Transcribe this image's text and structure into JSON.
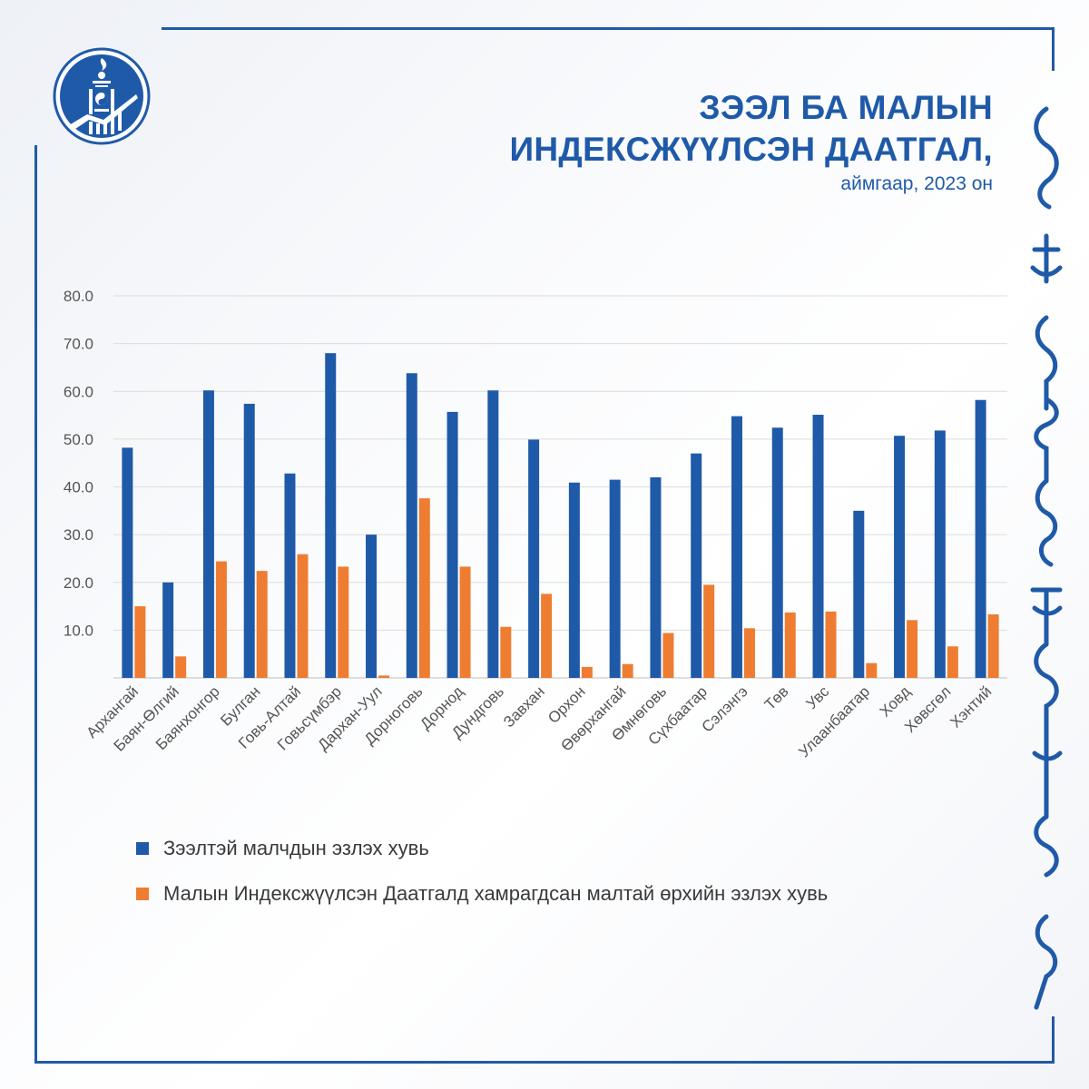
{
  "title": {
    "line1": "ЗЭЭЛ БА МАЛЫН",
    "line2": "ИНДЕКСЖҮҮЛСЭН ДААТГАЛ,",
    "subtitle": "аймгаар, 2023 он"
  },
  "colors": {
    "brand": "#1f5aa8",
    "series1": "#1f5aa8",
    "series2": "#ee7d31",
    "grid": "#dcdcdc",
    "axis_text": "#555555"
  },
  "icons": {
    "logo": "mongolia-soyombo-emblem-icon",
    "script": "mongolian-script-text-icon"
  },
  "chart_data": {
    "type": "bar",
    "categories": [
      "Архангай",
      "Баян-Өлгий",
      "Баянхонгор",
      "Булган",
      "Говь-Алтай",
      "Говьсүмбэр",
      "Дархан-Уул",
      "Дорноговь",
      "Дорнод",
      "Дундговь",
      "Завхан",
      "Орхон",
      "Өвөрхангай",
      "Өмнөговь",
      "Сүхбаатар",
      "Сэлэнгэ",
      "Төв",
      "Увс",
      "Улаанбаатар",
      "Ховд",
      "Хөвсгөл",
      "Хэнтий"
    ],
    "series": [
      {
        "name": "Зээлтэй малчдын эзлэх хувь",
        "values": [
          48.2,
          20.0,
          60.2,
          57.4,
          42.8,
          68.0,
          30.0,
          63.8,
          55.7,
          60.2,
          49.9,
          40.9,
          41.5,
          42.0,
          47.0,
          54.8,
          52.4,
          55.1,
          35.0,
          50.7,
          51.8,
          58.2
        ]
      },
      {
        "name": "Малын Индексжүүлсэн Даатгалд хамрагдсан малтай өрхийн эзлэх хувь",
        "values": [
          15.0,
          4.5,
          24.4,
          22.4,
          25.9,
          23.3,
          0.5,
          37.6,
          23.3,
          10.7,
          17.6,
          2.3,
          2.9,
          9.4,
          19.5,
          10.4,
          13.7,
          13.9,
          3.1,
          12.1,
          6.6,
          13.3
        ]
      }
    ],
    "y_ticks": [
      "10.0",
      "20.0",
      "30.0",
      "40.0",
      "50.0",
      "60.0",
      "70.0",
      "80.0"
    ],
    "ylim": [
      0,
      80
    ],
    "grid": true,
    "legend_position": "bottom-left"
  }
}
